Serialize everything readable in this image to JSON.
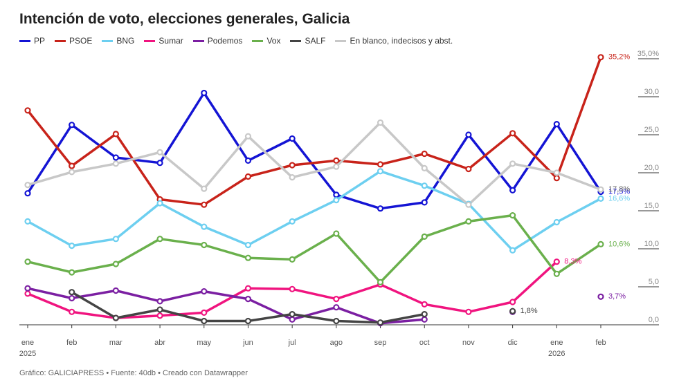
{
  "chart_data": {
    "type": "line",
    "title": "Intención de voto, elecciones generales, Galicia",
    "source": "Gráfico: GALICIAPRESS • Fuente: 40db • Creado con Datawrapper",
    "categories": [
      "ene 2025",
      "feb",
      "mar",
      "abr",
      "may",
      "jun",
      "jul",
      "ago",
      "sep",
      "oct",
      "nov",
      "dic",
      "ene 2026",
      "feb"
    ],
    "ylim": [
      0,
      35
    ],
    "yticks": [
      {
        "value": 0,
        "label": "0,0"
      },
      {
        "value": 5,
        "label": "5,0"
      },
      {
        "value": 10,
        "label": "10,0"
      },
      {
        "value": 15,
        "label": "15,0"
      },
      {
        "value": 20,
        "label": "20,0"
      },
      {
        "value": 25,
        "label": "25,0"
      },
      {
        "value": 30,
        "label": "30,0"
      },
      {
        "value": 35,
        "label": "35,0%"
      }
    ],
    "series": [
      {
        "name": "PP",
        "color": "#1414d4",
        "values": [
          17.3,
          26.3,
          22.0,
          21.3,
          30.5,
          21.6,
          24.5,
          17.1,
          15.3,
          16.1,
          25.0,
          17.7,
          26.4,
          17.5
        ],
        "value_labels": [
          null,
          null,
          null,
          null,
          null,
          null,
          null,
          null,
          null,
          null,
          null,
          null,
          null,
          "17,5%"
        ]
      },
      {
        "name": "PSOE",
        "color": "#c8231a",
        "values": [
          28.2,
          20.9,
          25.1,
          16.5,
          15.8,
          19.5,
          21.0,
          21.6,
          21.1,
          22.5,
          20.5,
          25.2,
          19.3,
          35.2
        ],
        "value_labels": [
          null,
          null,
          null,
          null,
          null,
          null,
          null,
          null,
          null,
          null,
          null,
          null,
          null,
          "35,2%"
        ]
      },
      {
        "name": "BNG",
        "color": "#6dcff0",
        "values": [
          13.6,
          10.4,
          11.3,
          16.0,
          12.9,
          10.5,
          13.6,
          16.4,
          20.2,
          18.3,
          15.9,
          9.8,
          13.5,
          16.6
        ],
        "value_labels": [
          null,
          null,
          null,
          null,
          null,
          null,
          null,
          null,
          null,
          null,
          null,
          null,
          null,
          "16,6%"
        ]
      },
      {
        "name": "Sumar",
        "color": "#f0147f",
        "values": [
          4.1,
          1.7,
          0.9,
          1.2,
          1.6,
          4.8,
          4.7,
          3.4,
          5.3,
          2.7,
          1.7,
          3.0,
          8.3,
          null
        ],
        "value_labels": [
          null,
          null,
          null,
          null,
          null,
          null,
          null,
          null,
          null,
          null,
          null,
          null,
          "8,3%",
          null
        ]
      },
      {
        "name": "Podemos",
        "color": "#7b1fa2",
        "values": [
          4.8,
          3.5,
          4.5,
          3.1,
          4.4,
          3.4,
          0.7,
          2.3,
          0.2,
          0.7,
          null,
          1.7,
          null,
          3.7
        ],
        "value_labels": [
          null,
          null,
          null,
          null,
          null,
          null,
          null,
          null,
          null,
          null,
          null,
          null,
          null,
          "3,7%"
        ]
      },
      {
        "name": "Vox",
        "color": "#6ab04c",
        "values": [
          8.3,
          6.9,
          8.0,
          11.3,
          10.5,
          8.8,
          8.6,
          12.0,
          5.6,
          11.6,
          13.6,
          14.4,
          6.7,
          10.6
        ],
        "value_labels": [
          null,
          null,
          null,
          null,
          null,
          null,
          null,
          null,
          null,
          null,
          null,
          null,
          null,
          "10,6%"
        ]
      },
      {
        "name": "SALF",
        "color": "#444444",
        "values": [
          null,
          4.3,
          0.9,
          2.0,
          0.5,
          0.5,
          1.4,
          0.5,
          0.3,
          1.4,
          null,
          1.8,
          null,
          null
        ],
        "value_labels": [
          null,
          null,
          null,
          null,
          null,
          null,
          null,
          null,
          null,
          null,
          null,
          "1,8%",
          null,
          null
        ]
      },
      {
        "name": "En blanco, indecisos y abst.",
        "color": "#c8c8c8",
        "values": [
          18.4,
          20.1,
          21.2,
          22.7,
          17.9,
          24.8,
          19.4,
          20.8,
          26.6,
          20.6,
          15.8,
          21.2,
          20.0,
          17.8
        ],
        "value_labels": [
          null,
          null,
          null,
          null,
          null,
          null,
          null,
          null,
          null,
          null,
          null,
          null,
          null,
          "17,8%"
        ]
      }
    ]
  }
}
